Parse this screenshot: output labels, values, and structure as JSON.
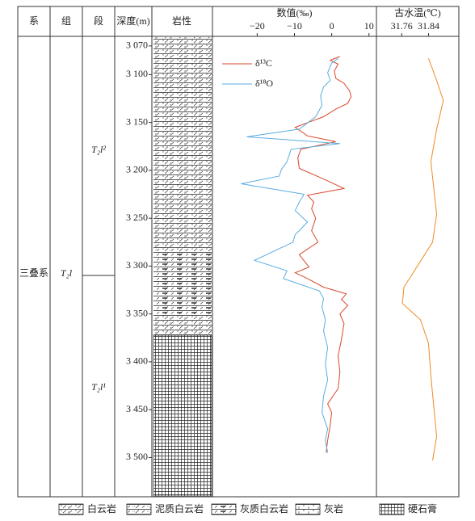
{
  "chart_data": {
    "type": "well-log",
    "headers": [
      "系",
      "组",
      "段",
      "深度(m)",
      "岩性"
    ],
    "system": "三叠系",
    "formation": "T₂l",
    "members": [
      "T₂l²",
      "T₂l¹"
    ],
    "ylim": [
      3060,
      3541
    ],
    "yticks": [
      {
        "value": 3070,
        "label": "3 070"
      },
      {
        "value": 3100,
        "label": "3 100"
      },
      {
        "value": 3150,
        "label": "3 150"
      },
      {
        "value": 3200,
        "label": "3 200"
      },
      {
        "value": 3250,
        "label": "3 250"
      },
      {
        "value": 3300,
        "label": "3 300"
      },
      {
        "value": 3350,
        "label": "3 350"
      },
      {
        "value": 3400,
        "label": "3 400"
      },
      {
        "value": 3450,
        "label": "3 450"
      },
      {
        "value": 3500,
        "label": "3 500"
      }
    ],
    "panels": [
      {
        "title": "数值(‰)",
        "xlim": [
          -32,
          12
        ],
        "xticks": [
          {
            "value": -20,
            "label": "−20"
          },
          {
            "value": -10,
            "label": "−10"
          },
          0,
          10
        ],
        "series": [
          {
            "name": "δ¹³C",
            "color": "#d9482b",
            "depth": [
              3081,
              3085,
              3089,
              3096,
              3104,
              3109,
              3117,
              3123,
              3130,
              3136,
              3144,
              3155,
              3164,
              3170,
              3178,
              3187,
              3198,
              3209,
              3219,
              3226,
              3233,
              3240,
              3250,
              3263,
              3275,
              3288,
              3301,
              3307,
              3313,
              3322,
              3329,
              3335,
              3341,
              3350,
              3360,
              3377,
              3394,
              3411,
              3428,
              3444,
              3453,
              3466,
              3482,
              3495
            ],
            "values": [
              2.2,
              -0.4,
              1.7,
              0.7,
              1.1,
              3.3,
              4.8,
              5.2,
              4.3,
              1.1,
              -2.2,
              -9.8,
              -6.5,
              1.1,
              -8.3,
              -9.1,
              -8.7,
              -2.2,
              3.3,
              -6.5,
              -4.8,
              -5.4,
              -4.3,
              -5.4,
              -3.7,
              -8.7,
              -6.1,
              -9.8,
              -6.5,
              -2.2,
              3.9,
              2.6,
              4.3,
              2.2,
              3.3,
              2.6,
              1.7,
              2.2,
              1.7,
              -1.1,
              0,
              -0.4,
              -1.1,
              -1.5
            ]
          },
          {
            "name": "δ¹⁸O",
            "color": "#5aaee0",
            "depth": [
              3083,
              3088,
              3098,
              3106,
              3113,
              3122,
              3132,
              3144,
              3157,
              3165,
              3172,
              3178,
              3191,
              3199,
              3206,
              3214,
              3225,
              3233,
              3242,
              3254,
              3263,
              3267,
              3275,
              3294,
              3305,
              3313,
              3326,
              3334,
              3343,
              3356,
              3368,
              3385,
              3402,
              3419,
              3436,
              3453,
              3470,
              3482,
              3495
            ],
            "values": [
              1.7,
              0,
              -1.1,
              -0.4,
              -2.2,
              -3.0,
              -2.6,
              -4.3,
              -8.7,
              -22.8,
              2.2,
              -10.9,
              -12.0,
              -13.5,
              -14.1,
              -24.3,
              -7.4,
              -8.7,
              -9.8,
              -6.5,
              -8.7,
              -9.8,
              -10.4,
              -20.7,
              -12.0,
              -13.0,
              -3.3,
              -2.2,
              -2.6,
              -1.7,
              -2.2,
              -1.1,
              -1.7,
              -1.1,
              -2.2,
              -2.6,
              -1.1,
              -1.7,
              -1.1
            ]
          }
        ]
      },
      {
        "title": "古水温(℃)",
        "xlim": [
          31.685,
          31.93
        ],
        "xticks": [
          31.76,
          31.84
        ],
        "series": [
          {
            "color": "#f08a24",
            "depth": [
              3083,
              3106,
              3127,
              3157,
              3191,
              3246,
              3275,
              3322,
              3339,
              3356,
              3381,
              3415,
              3478,
              3503
            ],
            "values": [
              31.84,
              31.864,
              31.884,
              31.864,
              31.847,
              31.864,
              31.852,
              31.767,
              31.762,
              31.816,
              31.84,
              31.847,
              31.864,
              31.852
            ]
          }
        ]
      }
    ],
    "lithology_legend": [
      "白云岩",
      "泥质白云岩",
      "灰质白云岩",
      "灰岩",
      "硬石膏"
    ]
  }
}
